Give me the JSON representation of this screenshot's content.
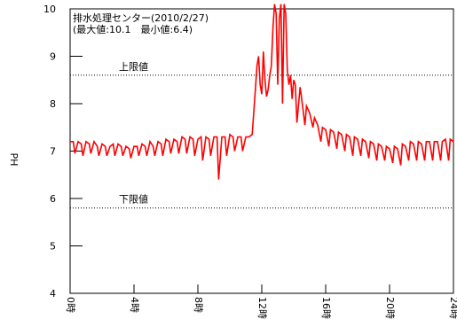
{
  "chart_data": {
    "type": "line",
    "title_line1": "排水処理センター(2010/2/27)",
    "title_line2": "(最大値:10.1　最小値:6.4)",
    "ylabel": "PH",
    "xlabel": "",
    "ylim": [
      4,
      10
    ],
    "xlim": [
      0,
      24
    ],
    "yticks": [
      "4",
      "5",
      "6",
      "7",
      "8",
      "9",
      "10"
    ],
    "xticks": [
      "0時",
      "4時",
      "8時",
      "12時",
      "16時",
      "20時",
      "24時"
    ],
    "upper_limit": {
      "label": "上限値",
      "value": 8.6
    },
    "lower_limit": {
      "label": "下限値",
      "value": 5.8
    },
    "series": [
      {
        "color": "#ff0000",
        "x": [
          0,
          0.2,
          0.3,
          0.5,
          0.7,
          0.8,
          1.0,
          1.2,
          1.3,
          1.5,
          1.7,
          1.8,
          2.0,
          2.2,
          2.3,
          2.5,
          2.7,
          2.8,
          3.0,
          3.2,
          3.3,
          3.5,
          3.7,
          3.8,
          4.0,
          4.2,
          4.3,
          4.5,
          4.7,
          4.8,
          5.0,
          5.2,
          5.3,
          5.5,
          5.7,
          5.8,
          6.0,
          6.2,
          6.3,
          6.5,
          6.7,
          6.8,
          7.0,
          7.2,
          7.3,
          7.5,
          7.7,
          7.8,
          8.0,
          8.2,
          8.3,
          8.5,
          8.7,
          8.8,
          9.0,
          9.2,
          9.3,
          9.5,
          9.7,
          9.8,
          10.0,
          10.2,
          10.3,
          10.5,
          10.7,
          10.8,
          11.0,
          11.2,
          11.4,
          11.6,
          11.7,
          11.8,
          11.9,
          12.0,
          12.1,
          12.2,
          12.3,
          12.4,
          12.5,
          12.6,
          12.7,
          12.8,
          12.9,
          13.0,
          13.1,
          13.2,
          13.3,
          13.4,
          13.5,
          13.6,
          13.7,
          13.8,
          13.9,
          14.0,
          14.1,
          14.2,
          14.4,
          14.5,
          14.7,
          14.8,
          15.0,
          15.2,
          15.3,
          15.5,
          15.7,
          15.8,
          16.0,
          16.2,
          16.3,
          16.5,
          16.7,
          16.8,
          17.0,
          17.2,
          17.3,
          17.5,
          17.7,
          17.8,
          18.0,
          18.2,
          18.3,
          18.5,
          18.7,
          18.8,
          19.0,
          19.2,
          19.3,
          19.5,
          19.7,
          19.8,
          20.0,
          20.2,
          20.3,
          20.5,
          20.7,
          20.8,
          21.0,
          21.2,
          21.3,
          21.5,
          21.7,
          21.8,
          22.0,
          22.2,
          22.3,
          22.5,
          22.7,
          22.8,
          23.0,
          23.2,
          23.3,
          23.5,
          23.7,
          23.8,
          24.0
        ],
        "y": [
          7.2,
          7.2,
          6.95,
          7.2,
          7.15,
          6.9,
          7.2,
          7.15,
          6.95,
          7.2,
          7.1,
          6.9,
          7.15,
          7.1,
          6.9,
          7.1,
          7.15,
          6.9,
          7.15,
          7.1,
          6.9,
          7.1,
          7.05,
          6.85,
          7.1,
          7.1,
          6.9,
          7.15,
          7.1,
          6.9,
          7.2,
          7.1,
          6.9,
          7.2,
          7.15,
          6.9,
          7.25,
          7.2,
          6.95,
          7.25,
          7.2,
          6.95,
          7.3,
          7.25,
          6.95,
          7.3,
          7.25,
          6.9,
          7.25,
          7.3,
          6.8,
          7.3,
          7.25,
          6.9,
          7.3,
          7.3,
          6.4,
          7.3,
          7.3,
          6.9,
          7.35,
          7.3,
          7.0,
          7.3,
          7.3,
          7.0,
          7.3,
          7.3,
          7.35,
          8.3,
          8.8,
          9.0,
          8.4,
          8.2,
          9.1,
          8.5,
          8.15,
          8.3,
          8.6,
          8.8,
          9.6,
          10.1,
          9.9,
          8.4,
          9.8,
          10.1,
          8.0,
          10.1,
          9.9,
          8.7,
          8.4,
          8.6,
          8.1,
          8.5,
          8.4,
          7.6,
          8.35,
          8.1,
          7.55,
          7.95,
          7.8,
          7.5,
          7.7,
          7.55,
          7.2,
          7.5,
          7.45,
          7.1,
          7.45,
          7.4,
          7.05,
          7.4,
          7.35,
          7.0,
          7.35,
          7.3,
          6.9,
          7.3,
          7.25,
          6.9,
          7.25,
          7.2,
          6.85,
          7.2,
          7.15,
          6.8,
          7.15,
          7.1,
          6.8,
          7.1,
          7.05,
          6.75,
          7.1,
          7.05,
          6.7,
          7.15,
          7.1,
          6.8,
          7.2,
          7.15,
          6.8,
          7.2,
          7.15,
          6.8,
          7.2,
          7.2,
          6.8,
          7.2,
          7.2,
          6.8,
          7.2,
          7.25,
          6.8,
          7.25,
          7.2
        ]
      }
    ]
  }
}
